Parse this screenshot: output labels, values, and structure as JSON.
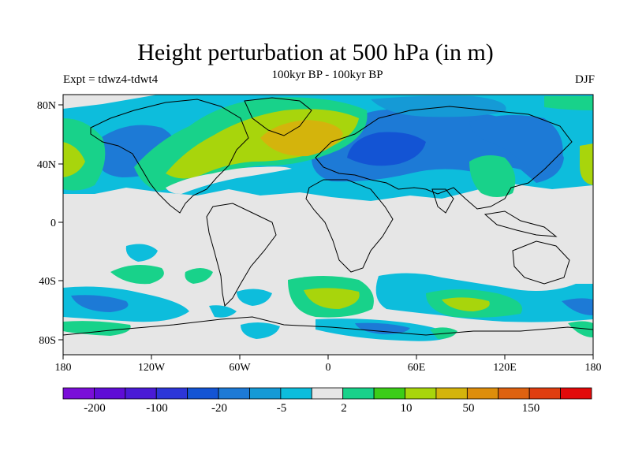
{
  "title": "Height perturbation at 500 hPa (in m)",
  "subtitle_left": "Expt = tdwz4-tdwt4",
  "subtitle_center": "100kyr BP - 100kyr BP",
  "subtitle_right": "DJF",
  "axes": {
    "x_ticks": [
      "180",
      "120W",
      "60W",
      "0",
      "60E",
      "120E",
      "180"
    ],
    "y_ticks": [
      "80N",
      "40N",
      "0",
      "40S",
      "80S"
    ]
  },
  "colorbar": {
    "colors": [
      "#7a0ed8",
      "#5f0dd6",
      "#4a1bd6",
      "#2d36d8",
      "#1354d4",
      "#1d7ad6",
      "#159ad6",
      "#0dbddc",
      "#e6e6e6",
      "#18d28a",
      "#3ccd18",
      "#a8d50c",
      "#d4b40c",
      "#de8e0c",
      "#de6210",
      "#e03e10",
      "#e20a0a"
    ],
    "labels": [
      "-200",
      "-100",
      "-20",
      "-5",
      "2",
      "10",
      "50",
      "150"
    ]
  },
  "colors": {
    "background_field": "#e6e6e6",
    "frame": "#000000"
  }
}
